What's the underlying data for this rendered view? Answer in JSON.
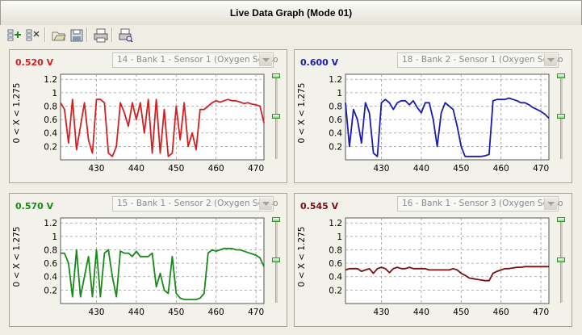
{
  "window": {
    "title": "Live Data Graph (Mode 01)"
  },
  "toolbar": [
    {
      "name": "add-sensor-icon"
    },
    {
      "name": "remove-sensor-icon"
    },
    {
      "name": "open-file-icon"
    },
    {
      "name": "save-icon"
    },
    {
      "name": "print-icon"
    },
    {
      "name": "print-preview-icon"
    }
  ],
  "panels": [
    {
      "value_text": "0.520 V",
      "color": "#d42020",
      "sensor_select": "14 - Bank 1 - Sensor 1 (Oxygen Senso",
      "y_axis_label": "0  < X <  1.275",
      "slider_levels": [
        1.0,
        0.5
      ]
    },
    {
      "value_text": "0.600 V",
      "color": "#1a1ab4",
      "sensor_select": "18 - Bank 2 - Sensor 1 (Oxygen Senso",
      "y_axis_label": "0  < X <  1.275",
      "slider_levels": [
        1.0,
        0.5
      ]
    },
    {
      "value_text": "0.570 V",
      "color": "#178a17",
      "sensor_select": "15 - Bank 1 - Sensor 2 (Oxygen Senso",
      "y_axis_label": "0  < X <  1.275",
      "slider_levels": [
        1.0,
        0.5
      ]
    },
    {
      "value_text": "0.545 V",
      "color": "#7a0f0f",
      "sensor_select": "16 - Bank 1 - Sensor 3 (Oxygen Senso",
      "y_axis_label": "0  < X <  1.275",
      "slider_levels": [
        1.0,
        0.5
      ]
    }
  ],
  "chart_data": [
    {
      "type": "line",
      "xlim": [
        421,
        472
      ],
      "ylim": [
        0,
        1.275
      ],
      "x_ticks": [
        430,
        440,
        450,
        460,
        470
      ],
      "y_ticks": [
        0.2,
        0.4,
        0.6,
        0.8,
        1,
        1.2
      ],
      "y_tick_labels": [
        "0.2",
        "0.4",
        "0.6",
        "0.8",
        "1",
        "1.2"
      ],
      "grid": true,
      "series": [
        {
          "x": [
            421,
            422,
            423,
            424,
            425,
            426,
            427,
            428,
            429,
            430,
            431,
            432,
            433,
            434,
            435,
            436,
            437,
            438,
            439,
            440,
            441,
            442,
            443,
            444,
            445,
            446,
            447,
            448,
            449,
            450,
            451,
            452,
            453,
            454,
            455,
            456,
            457,
            458,
            459,
            460,
            461,
            462,
            463,
            464,
            465,
            466,
            467,
            468,
            469,
            470,
            471,
            472
          ],
          "y": [
            0.85,
            0.75,
            0.25,
            0.9,
            0.15,
            0.5,
            0.85,
            0.3,
            0.1,
            0.9,
            0.9,
            0.85,
            0.1,
            0.05,
            0.2,
            0.85,
            0.7,
            0.5,
            0.85,
            0.6,
            0.85,
            0.4,
            0.9,
            0.1,
            0.9,
            0.1,
            0.75,
            0.05,
            0.1,
            0.8,
            0.3,
            0.85,
            0.2,
            0.4,
            0.15,
            0.75,
            0.75,
            0.8,
            0.85,
            0.88,
            0.86,
            0.88,
            0.9,
            0.88,
            0.88,
            0.86,
            0.84,
            0.85,
            0.83,
            0.82,
            0.8,
            0.55
          ]
        }
      ]
    },
    {
      "type": "line",
      "xlim": [
        421,
        472
      ],
      "ylim": [
        0,
        1.275
      ],
      "x_ticks": [
        430,
        440,
        450,
        460,
        470
      ],
      "y_ticks": [
        0.2,
        0.4,
        0.6,
        0.8,
        1,
        1.2
      ],
      "y_tick_labels": [
        "0.2",
        "0.4",
        "0.6",
        "0.8",
        "1",
        "1.2"
      ],
      "grid": true,
      "series": [
        {
          "x": [
            421,
            422,
            423,
            424,
            425,
            426,
            427,
            428,
            429,
            430,
            431,
            432,
            433,
            434,
            435,
            436,
            437,
            438,
            439,
            440,
            441,
            442,
            443,
            444,
            445,
            446,
            447,
            448,
            449,
            450,
            451,
            452,
            453,
            454,
            455,
            456,
            457,
            458,
            459,
            460,
            461,
            462,
            463,
            464,
            465,
            466,
            467,
            468,
            469,
            470,
            471,
            472
          ],
          "y": [
            0.85,
            0.2,
            0.75,
            0.6,
            0.25,
            0.85,
            0.7,
            0.1,
            0.05,
            0.85,
            0.9,
            0.85,
            0.75,
            0.85,
            0.88,
            0.88,
            0.82,
            0.88,
            0.78,
            0.7,
            0.85,
            0.85,
            0.6,
            0.2,
            0.7,
            0.85,
            0.8,
            0.75,
            0.5,
            0.2,
            0.05,
            0.05,
            0.05,
            0.05,
            0.05,
            0.06,
            0.08,
            0.88,
            0.9,
            0.9,
            0.9,
            0.92,
            0.9,
            0.88,
            0.85,
            0.85,
            0.82,
            0.78,
            0.75,
            0.72,
            0.68,
            0.62
          ]
        }
      ]
    },
    {
      "type": "line",
      "xlim": [
        421,
        472
      ],
      "ylim": [
        0,
        1.275
      ],
      "x_ticks": [
        430,
        440,
        450,
        460,
        470
      ],
      "y_ticks": [
        0.2,
        0.4,
        0.6,
        0.8,
        1,
        1.2
      ],
      "y_tick_labels": [
        "0.2",
        "0.4",
        "0.6",
        "0.8",
        "1",
        "1.2"
      ],
      "grid": true,
      "series": [
        {
          "x": [
            421,
            422,
            423,
            424,
            425,
            426,
            427,
            428,
            429,
            430,
            431,
            432,
            433,
            434,
            435,
            436,
            437,
            438,
            439,
            440,
            441,
            442,
            443,
            444,
            445,
            446,
            447,
            448,
            449,
            450,
            451,
            452,
            453,
            454,
            455,
            456,
            457,
            458,
            459,
            460,
            461,
            462,
            463,
            464,
            465,
            466,
            467,
            468,
            469,
            470,
            471,
            472
          ],
          "y": [
            0.75,
            0.75,
            0.6,
            0.1,
            0.8,
            0.1,
            0.4,
            0.7,
            0.1,
            0.8,
            0.1,
            0.75,
            0.8,
            0.4,
            0.1,
            0.78,
            0.75,
            0.75,
            0.7,
            0.78,
            0.7,
            0.7,
            0.7,
            0.75,
            0.25,
            0.45,
            0.2,
            0.15,
            0.7,
            0.15,
            0.08,
            0.06,
            0.06,
            0.06,
            0.06,
            0.08,
            0.15,
            0.75,
            0.8,
            0.78,
            0.8,
            0.82,
            0.82,
            0.82,
            0.8,
            0.8,
            0.78,
            0.76,
            0.74,
            0.72,
            0.68,
            0.55
          ]
        }
      ]
    },
    {
      "type": "line",
      "xlim": [
        421,
        472
      ],
      "ylim": [
        0,
        1.275
      ],
      "x_ticks": [
        430,
        440,
        450,
        460,
        470
      ],
      "y_ticks": [
        0.2,
        0.4,
        0.6,
        0.8,
        1,
        1.2
      ],
      "y_tick_labels": [
        "0.2",
        "0.4",
        "0.6",
        "0.8",
        "1",
        "1.2"
      ],
      "grid": true,
      "series": [
        {
          "x": [
            421,
            422,
            423,
            424,
            425,
            426,
            427,
            428,
            429,
            430,
            431,
            432,
            433,
            434,
            435,
            436,
            437,
            438,
            439,
            440,
            441,
            442,
            443,
            444,
            445,
            446,
            447,
            448,
            449,
            450,
            451,
            452,
            453,
            454,
            455,
            456,
            457,
            458,
            459,
            460,
            461,
            462,
            463,
            464,
            465,
            466,
            467,
            468,
            469,
            470,
            471,
            472
          ],
          "y": [
            0.5,
            0.52,
            0.52,
            0.52,
            0.48,
            0.5,
            0.52,
            0.45,
            0.52,
            0.54,
            0.52,
            0.46,
            0.52,
            0.54,
            0.52,
            0.52,
            0.54,
            0.52,
            0.52,
            0.52,
            0.52,
            0.5,
            0.5,
            0.5,
            0.5,
            0.5,
            0.5,
            0.52,
            0.5,
            0.45,
            0.42,
            0.38,
            0.37,
            0.36,
            0.35,
            0.34,
            0.34,
            0.45,
            0.48,
            0.5,
            0.52,
            0.52,
            0.53,
            0.54,
            0.54,
            0.55,
            0.55,
            0.55,
            0.55,
            0.55,
            0.55,
            0.55
          ]
        }
      ]
    }
  ]
}
